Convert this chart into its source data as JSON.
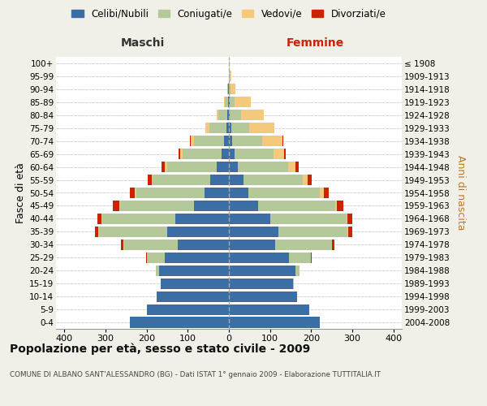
{
  "age_groups": [
    "0-4",
    "5-9",
    "10-14",
    "15-19",
    "20-24",
    "25-29",
    "30-34",
    "35-39",
    "40-44",
    "45-49",
    "50-54",
    "55-59",
    "60-64",
    "65-69",
    "70-74",
    "75-79",
    "80-84",
    "85-89",
    "90-94",
    "95-99",
    "100+"
  ],
  "birth_years": [
    "2004-2008",
    "1999-2003",
    "1994-1998",
    "1989-1993",
    "1984-1988",
    "1979-1983",
    "1974-1978",
    "1969-1973",
    "1964-1968",
    "1959-1963",
    "1954-1958",
    "1949-1953",
    "1944-1948",
    "1939-1943",
    "1934-1938",
    "1929-1933",
    "1924-1928",
    "1919-1923",
    "1914-1918",
    "1909-1913",
    "≤ 1908"
  ],
  "males": {
    "celibi": [
      240,
      200,
      175,
      165,
      170,
      155,
      125,
      150,
      130,
      85,
      60,
      45,
      30,
      18,
      12,
      6,
      3,
      2,
      1,
      0,
      0
    ],
    "coniugati": [
      0,
      0,
      0,
      0,
      8,
      45,
      130,
      165,
      178,
      180,
      165,
      140,
      120,
      95,
      72,
      42,
      22,
      8,
      2,
      0,
      0
    ],
    "vedovi": [
      0,
      0,
      0,
      0,
      0,
      0,
      2,
      2,
      2,
      2,
      3,
      3,
      5,
      5,
      8,
      10,
      5,
      2,
      0,
      0,
      0
    ],
    "divorziati": [
      0,
      0,
      0,
      0,
      0,
      2,
      5,
      8,
      10,
      15,
      12,
      10,
      8,
      5,
      2,
      0,
      0,
      0,
      0,
      0,
      0
    ]
  },
  "females": {
    "nubili": [
      220,
      195,
      165,
      155,
      162,
      145,
      112,
      120,
      100,
      70,
      48,
      35,
      22,
      14,
      8,
      5,
      2,
      1,
      0,
      0,
      0
    ],
    "coniugate": [
      0,
      0,
      0,
      2,
      10,
      55,
      138,
      168,
      185,
      188,
      172,
      145,
      122,
      95,
      72,
      45,
      28,
      12,
      4,
      1,
      0
    ],
    "vedove": [
      0,
      0,
      0,
      0,
      0,
      0,
      1,
      2,
      3,
      5,
      10,
      12,
      18,
      25,
      50,
      60,
      55,
      40,
      12,
      4,
      1
    ],
    "divorziate": [
      0,
      0,
      0,
      0,
      0,
      2,
      5,
      10,
      12,
      15,
      12,
      10,
      8,
      5,
      2,
      0,
      0,
      0,
      0,
      0,
      0
    ]
  },
  "colors": {
    "celibi": "#3a6ea5",
    "coniugati": "#b5c89a",
    "vedovi": "#f5c97a",
    "divorziati": "#cc2200"
  },
  "xlim": 420,
  "title": "Popolazione per età, sesso e stato civile - 2009",
  "subtitle": "COMUNE DI ALBANO SANT'ALESSANDRO (BG) - Dati ISTAT 1° gennaio 2009 - Elaborazione TUTTITALIA.IT",
  "ylabel_left": "Fasce di età",
  "ylabel_right": "Anni di nascita",
  "xlabel_left": "Maschi",
  "xlabel_right": "Femmine",
  "legend_labels": [
    "Celibi/Nubili",
    "Coniugati/e",
    "Vedovi/e",
    "Divorziati/e"
  ],
  "bg_color": "#f0f0e8",
  "plot_bg": "#ffffff",
  "xticks": [
    -400,
    -300,
    -200,
    -100,
    0,
    100,
    200,
    300,
    400
  ]
}
